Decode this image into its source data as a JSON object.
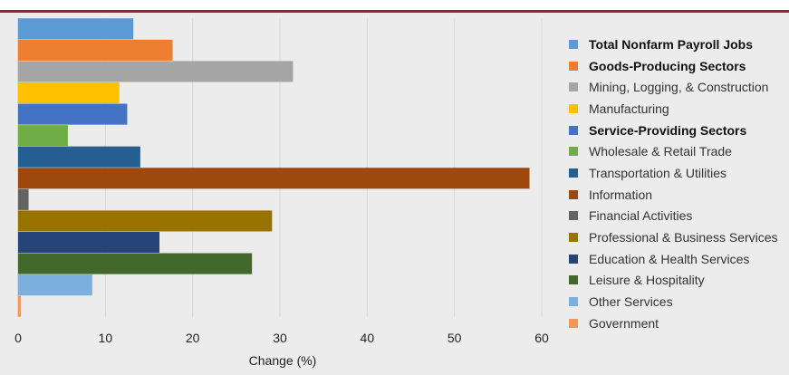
{
  "chart_data": {
    "type": "bar",
    "orientation": "horizontal",
    "xlabel": "Change (%)",
    "xlim": [
      0,
      60
    ],
    "xticks": [
      0,
      10,
      20,
      30,
      40,
      50,
      60
    ],
    "grid": true,
    "legend_position": "right",
    "categories": [
      "Total Nonfarm Payroll Jobs",
      "Goods-Producing Sectors",
      "Mining, Logging, & Construction",
      "Manufacturing",
      "Service-Providing Sectors",
      "Wholesale & Retail Trade",
      "Transportation & Utilities",
      "Information",
      "Financial Activities",
      "Professional & Business Services",
      "Education & Health Services",
      "Leisure & Hospitality",
      "Other Services",
      "Government"
    ],
    "values": [
      13.2,
      17.7,
      31.5,
      11.6,
      12.5,
      5.7,
      14.0,
      58.6,
      1.2,
      29.1,
      16.2,
      26.8,
      8.5,
      0.3
    ],
    "colors": [
      "#5b9bd5",
      "#ed7d31",
      "#a5a5a5",
      "#ffc000",
      "#4472c4",
      "#70ad47",
      "#255e91",
      "#9e480e",
      "#636363",
      "#997300",
      "#264478",
      "#43682b",
      "#7cafdd",
      "#f1975a"
    ],
    "bold_legend": [
      true,
      true,
      false,
      false,
      true,
      false,
      false,
      false,
      false,
      false,
      false,
      false,
      false,
      false
    ]
  }
}
